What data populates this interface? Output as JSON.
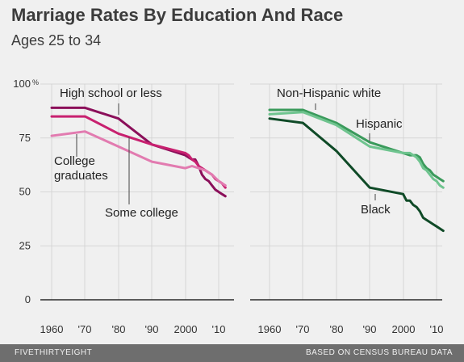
{
  "title": "Marriage Rates By Education And Race",
  "subtitle": "Ages 25 to 34",
  "footer": {
    "brand": "FIVETHIRTYEIGHT",
    "source": "BASED ON CENSUS BUREAU DATA"
  },
  "chart_data": [
    {
      "type": "line",
      "panel": "left",
      "ylim": [
        0,
        100
      ],
      "xlim": [
        1960,
        2013
      ],
      "y_ticks": [
        0,
        25,
        50,
        75,
        100
      ],
      "y_tick_labels": [
        "0",
        "25",
        "50",
        "75",
        "100"
      ],
      "y_unit_suffix": "%",
      "x_ticks": [
        1960,
        1970,
        1980,
        1990,
        2000,
        2010
      ],
      "x_tick_labels": [
        "1960",
        "'70",
        "'80",
        "'90",
        "2000",
        "'10"
      ],
      "grid": true,
      "series": [
        {
          "name": "High school or less",
          "color": "#8b0f5a",
          "x": [
            1960,
            1970,
            1980,
            1990,
            2000,
            2001,
            2002,
            2003,
            2004,
            2005,
            2006,
            2007,
            2008,
            2009,
            2010,
            2011,
            2012
          ],
          "y": [
            89,
            89,
            84,
            72,
            67,
            66,
            65,
            65,
            62,
            58,
            56,
            55,
            53,
            51,
            50,
            49,
            48
          ]
        },
        {
          "name": "Some college",
          "color": "#c8206f",
          "x": [
            1960,
            1970,
            1980,
            1990,
            2000,
            2001,
            2002,
            2003,
            2004,
            2005,
            2006,
            2007,
            2008,
            2009,
            2010,
            2011,
            2012
          ],
          "y": [
            85,
            85,
            77,
            72,
            68,
            67,
            65,
            64,
            62,
            61,
            60,
            59,
            58,
            56,
            55,
            54,
            52
          ]
        },
        {
          "name": "College graduates",
          "color": "#e27bb0",
          "x": [
            1960,
            1970,
            1980,
            1990,
            2000,
            2002,
            2004,
            2006,
            2008,
            2010,
            2012
          ],
          "y": [
            76,
            78,
            71,
            64,
            61,
            62,
            61,
            60,
            58,
            55,
            53
          ]
        }
      ]
    },
    {
      "type": "line",
      "panel": "right",
      "ylim": [
        0,
        100
      ],
      "xlim": [
        1960,
        2013
      ],
      "x_ticks": [
        1960,
        1970,
        1980,
        1990,
        2000,
        2010
      ],
      "x_tick_labels": [
        "1960",
        "'70",
        "'80",
        "'90",
        "2000",
        "'10"
      ],
      "grid": true,
      "series": [
        {
          "name": "Non-Hispanic white",
          "color": "#3a9a5b",
          "x": [
            1960,
            1970,
            1980,
            1990,
            2000,
            2002,
            2004,
            2005,
            2006,
            2007,
            2008,
            2009,
            2010,
            2011,
            2012
          ],
          "y": [
            88,
            88,
            82,
            73,
            68,
            67,
            67,
            66,
            63,
            61,
            60,
            58,
            57,
            56,
            55
          ]
        },
        {
          "name": "Hispanic",
          "color": "#6fc48f",
          "x": [
            1960,
            1970,
            1980,
            1990,
            2000,
            2002,
            2004,
            2005,
            2006,
            2007,
            2008,
            2009,
            2010,
            2011,
            2012
          ],
          "y": [
            86,
            87,
            81,
            71,
            68,
            68,
            66,
            64,
            61,
            60,
            58,
            56,
            55,
            53,
            52
          ]
        },
        {
          "name": "Black",
          "color": "#0f4a27",
          "x": [
            1960,
            1970,
            1980,
            1990,
            2000,
            2001,
            2002,
            2003,
            2004,
            2005,
            2006,
            2007,
            2008,
            2009,
            2010,
            2011,
            2012
          ],
          "y": [
            84,
            82,
            69,
            52,
            49,
            46,
            46,
            44,
            43,
            41,
            38,
            37,
            36,
            35,
            34,
            33,
            32
          ]
        }
      ]
    }
  ],
  "annotations": [
    {
      "panel": 0,
      "lines": [
        "High school or less"
      ]
    },
    {
      "panel": 0,
      "lines": [
        "College",
        "graduates"
      ]
    },
    {
      "panel": 0,
      "lines": [
        "Some college"
      ]
    },
    {
      "panel": 1,
      "lines": [
        "Non-Hispanic white"
      ]
    },
    {
      "panel": 1,
      "lines": [
        "Hispanic"
      ]
    },
    {
      "panel": 1,
      "lines": [
        "Black"
      ]
    }
  ]
}
